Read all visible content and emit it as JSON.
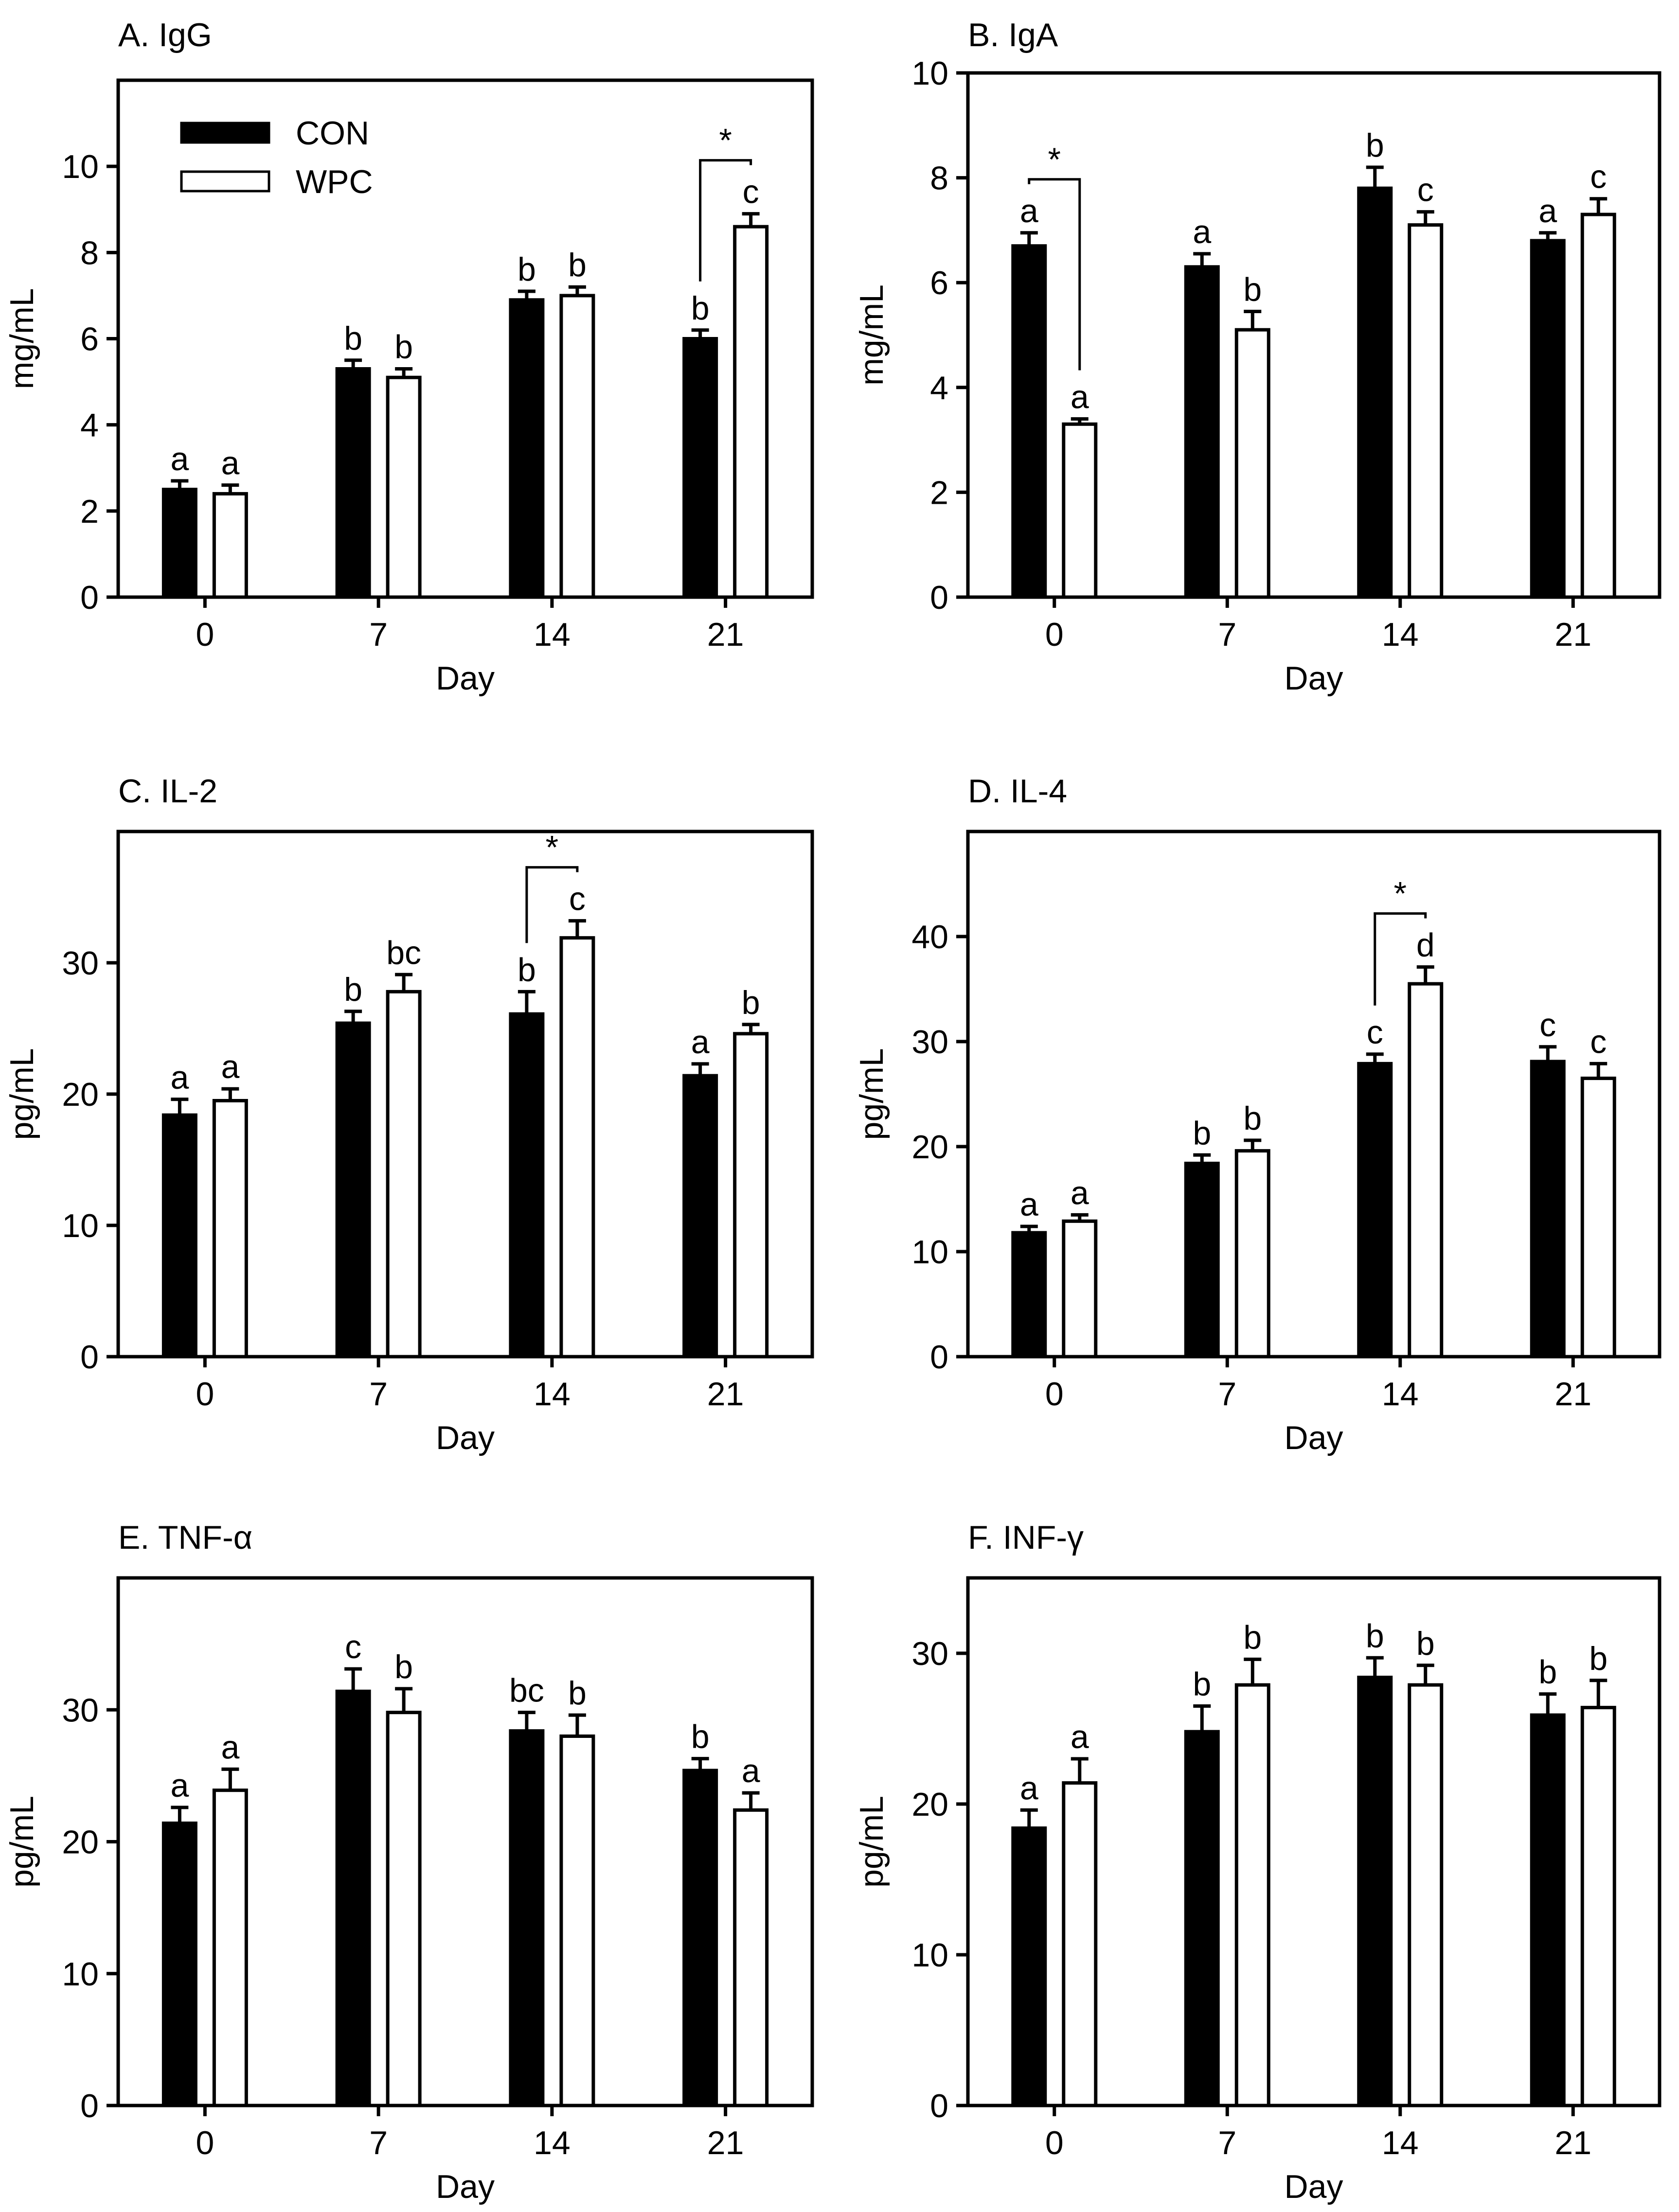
{
  "chart_data": [
    {
      "type": "bar",
      "title": "A. IgG",
      "xlabel": "Day",
      "ylabel": "mg/mL",
      "categories": [
        "0",
        "7",
        "14",
        "21"
      ],
      "ylim": [
        0,
        12
      ],
      "yticks": [
        "0",
        "2",
        "4",
        "6",
        "8",
        "10"
      ],
      "series": [
        {
          "name": "CON",
          "values": [
            2.5,
            5.3,
            6.9,
            6.0
          ],
          "errors": [
            0.2,
            0.2,
            0.2,
            0.2
          ],
          "letters": [
            "a",
            "b",
            "b",
            "b"
          ]
        },
        {
          "name": "WPC",
          "values": [
            2.4,
            5.1,
            7.0,
            8.6
          ],
          "errors": [
            0.2,
            0.2,
            0.2,
            0.3
          ],
          "letters": [
            "a",
            "b",
            "b",
            "c"
          ]
        }
      ],
      "legend": {
        "placement": "top-left",
        "entries": [
          "CON",
          "WPC"
        ]
      },
      "significance": [
        {
          "category": "21",
          "label": "*"
        }
      ]
    },
    {
      "type": "bar",
      "title": "B. IgA",
      "xlabel": "Day",
      "ylabel": "mg/mL",
      "categories": [
        "0",
        "7",
        "14",
        "21"
      ],
      "ylim": [
        0,
        10
      ],
      "yticks": [
        "0",
        "2",
        "4",
        "6",
        "8",
        "10"
      ],
      "series": [
        {
          "name": "CON",
          "values": [
            6.7,
            6.3,
            7.8,
            6.8
          ],
          "errors": [
            0.25,
            0.25,
            0.4,
            0.15
          ],
          "letters": [
            "a",
            "a",
            "b",
            "a"
          ]
        },
        {
          "name": "WPC",
          "values": [
            3.3,
            5.1,
            7.1,
            7.3
          ],
          "errors": [
            0.1,
            0.35,
            0.25,
            0.3
          ],
          "letters": [
            "a",
            "b",
            "c",
            "c"
          ]
        }
      ],
      "significance": [
        {
          "category": "0",
          "label": "*"
        }
      ]
    },
    {
      "type": "bar",
      "title": "C. IL-2",
      "xlabel": "Day",
      "ylabel": "pg/mL",
      "categories": [
        "0",
        "7",
        "14",
        "21"
      ],
      "ylim": [
        0,
        40
      ],
      "yticks": [
        "0",
        "10",
        "20",
        "30"
      ],
      "series": [
        {
          "name": "CON",
          "values": [
            18.4,
            25.4,
            26.1,
            21.4
          ],
          "errors": [
            1.2,
            0.9,
            1.7,
            0.9
          ],
          "letters": [
            "a",
            "b",
            "b",
            "a"
          ]
        },
        {
          "name": "WPC",
          "values": [
            19.5,
            27.8,
            31.9,
            24.6
          ],
          "errors": [
            0.9,
            1.3,
            1.3,
            0.7
          ],
          "letters": [
            "a",
            "bc",
            "c",
            "b"
          ]
        }
      ],
      "significance": [
        {
          "category": "14",
          "label": "*"
        }
      ]
    },
    {
      "type": "bar",
      "title": "D. IL-4",
      "xlabel": "Day",
      "ylabel": "pg/mL",
      "categories": [
        "0",
        "7",
        "14",
        "21"
      ],
      "ylim": [
        0,
        50
      ],
      "yticks": [
        "0",
        "10",
        "20",
        "30",
        "40"
      ],
      "series": [
        {
          "name": "CON",
          "values": [
            11.8,
            18.4,
            27.9,
            28.1
          ],
          "errors": [
            0.6,
            0.8,
            0.9,
            1.4
          ],
          "letters": [
            "a",
            "b",
            "c",
            "c"
          ]
        },
        {
          "name": "WPC",
          "values": [
            12.9,
            19.6,
            35.5,
            26.5
          ],
          "errors": [
            0.6,
            1.0,
            1.6,
            1.4
          ],
          "letters": [
            "a",
            "b",
            "d",
            "c"
          ]
        }
      ],
      "significance": [
        {
          "category": "14",
          "label": "*"
        }
      ]
    },
    {
      "type": "bar",
      "title": "E. TNF-α",
      "xlabel": "Day",
      "ylabel": "pg/mL",
      "categories": [
        "0",
        "7",
        "14",
        "21"
      ],
      "ylim": [
        0,
        40
      ],
      "yticks": [
        "0",
        "10",
        "20",
        "30"
      ],
      "series": [
        {
          "name": "CON",
          "values": [
            21.4,
            31.4,
            28.4,
            25.4
          ],
          "errors": [
            1.2,
            1.7,
            1.4,
            0.9
          ],
          "letters": [
            "a",
            "c",
            "bc",
            "b"
          ]
        },
        {
          "name": "WPC",
          "values": [
            23.9,
            29.8,
            28.0,
            22.4
          ],
          "errors": [
            1.6,
            1.8,
            1.6,
            1.3
          ],
          "letters": [
            "a",
            "b",
            "b",
            "a"
          ]
        }
      ]
    },
    {
      "type": "bar",
      "title": "F. INF-γ",
      "xlabel": "Day",
      "ylabel": "pg/mL",
      "categories": [
        "0",
        "7",
        "14",
        "21"
      ],
      "ylim": [
        0,
        35
      ],
      "yticks": [
        "0",
        "10",
        "20",
        "30"
      ],
      "series": [
        {
          "name": "CON",
          "values": [
            18.4,
            24.8,
            28.4,
            25.9
          ],
          "errors": [
            1.2,
            1.7,
            1.3,
            1.4
          ],
          "letters": [
            "a",
            "b",
            "b",
            "b"
          ]
        },
        {
          "name": "WPC",
          "values": [
            21.4,
            27.9,
            27.9,
            26.4
          ],
          "errors": [
            1.6,
            1.7,
            1.3,
            1.8
          ],
          "letters": [
            "a",
            "b",
            "b",
            "b"
          ]
        }
      ]
    }
  ]
}
